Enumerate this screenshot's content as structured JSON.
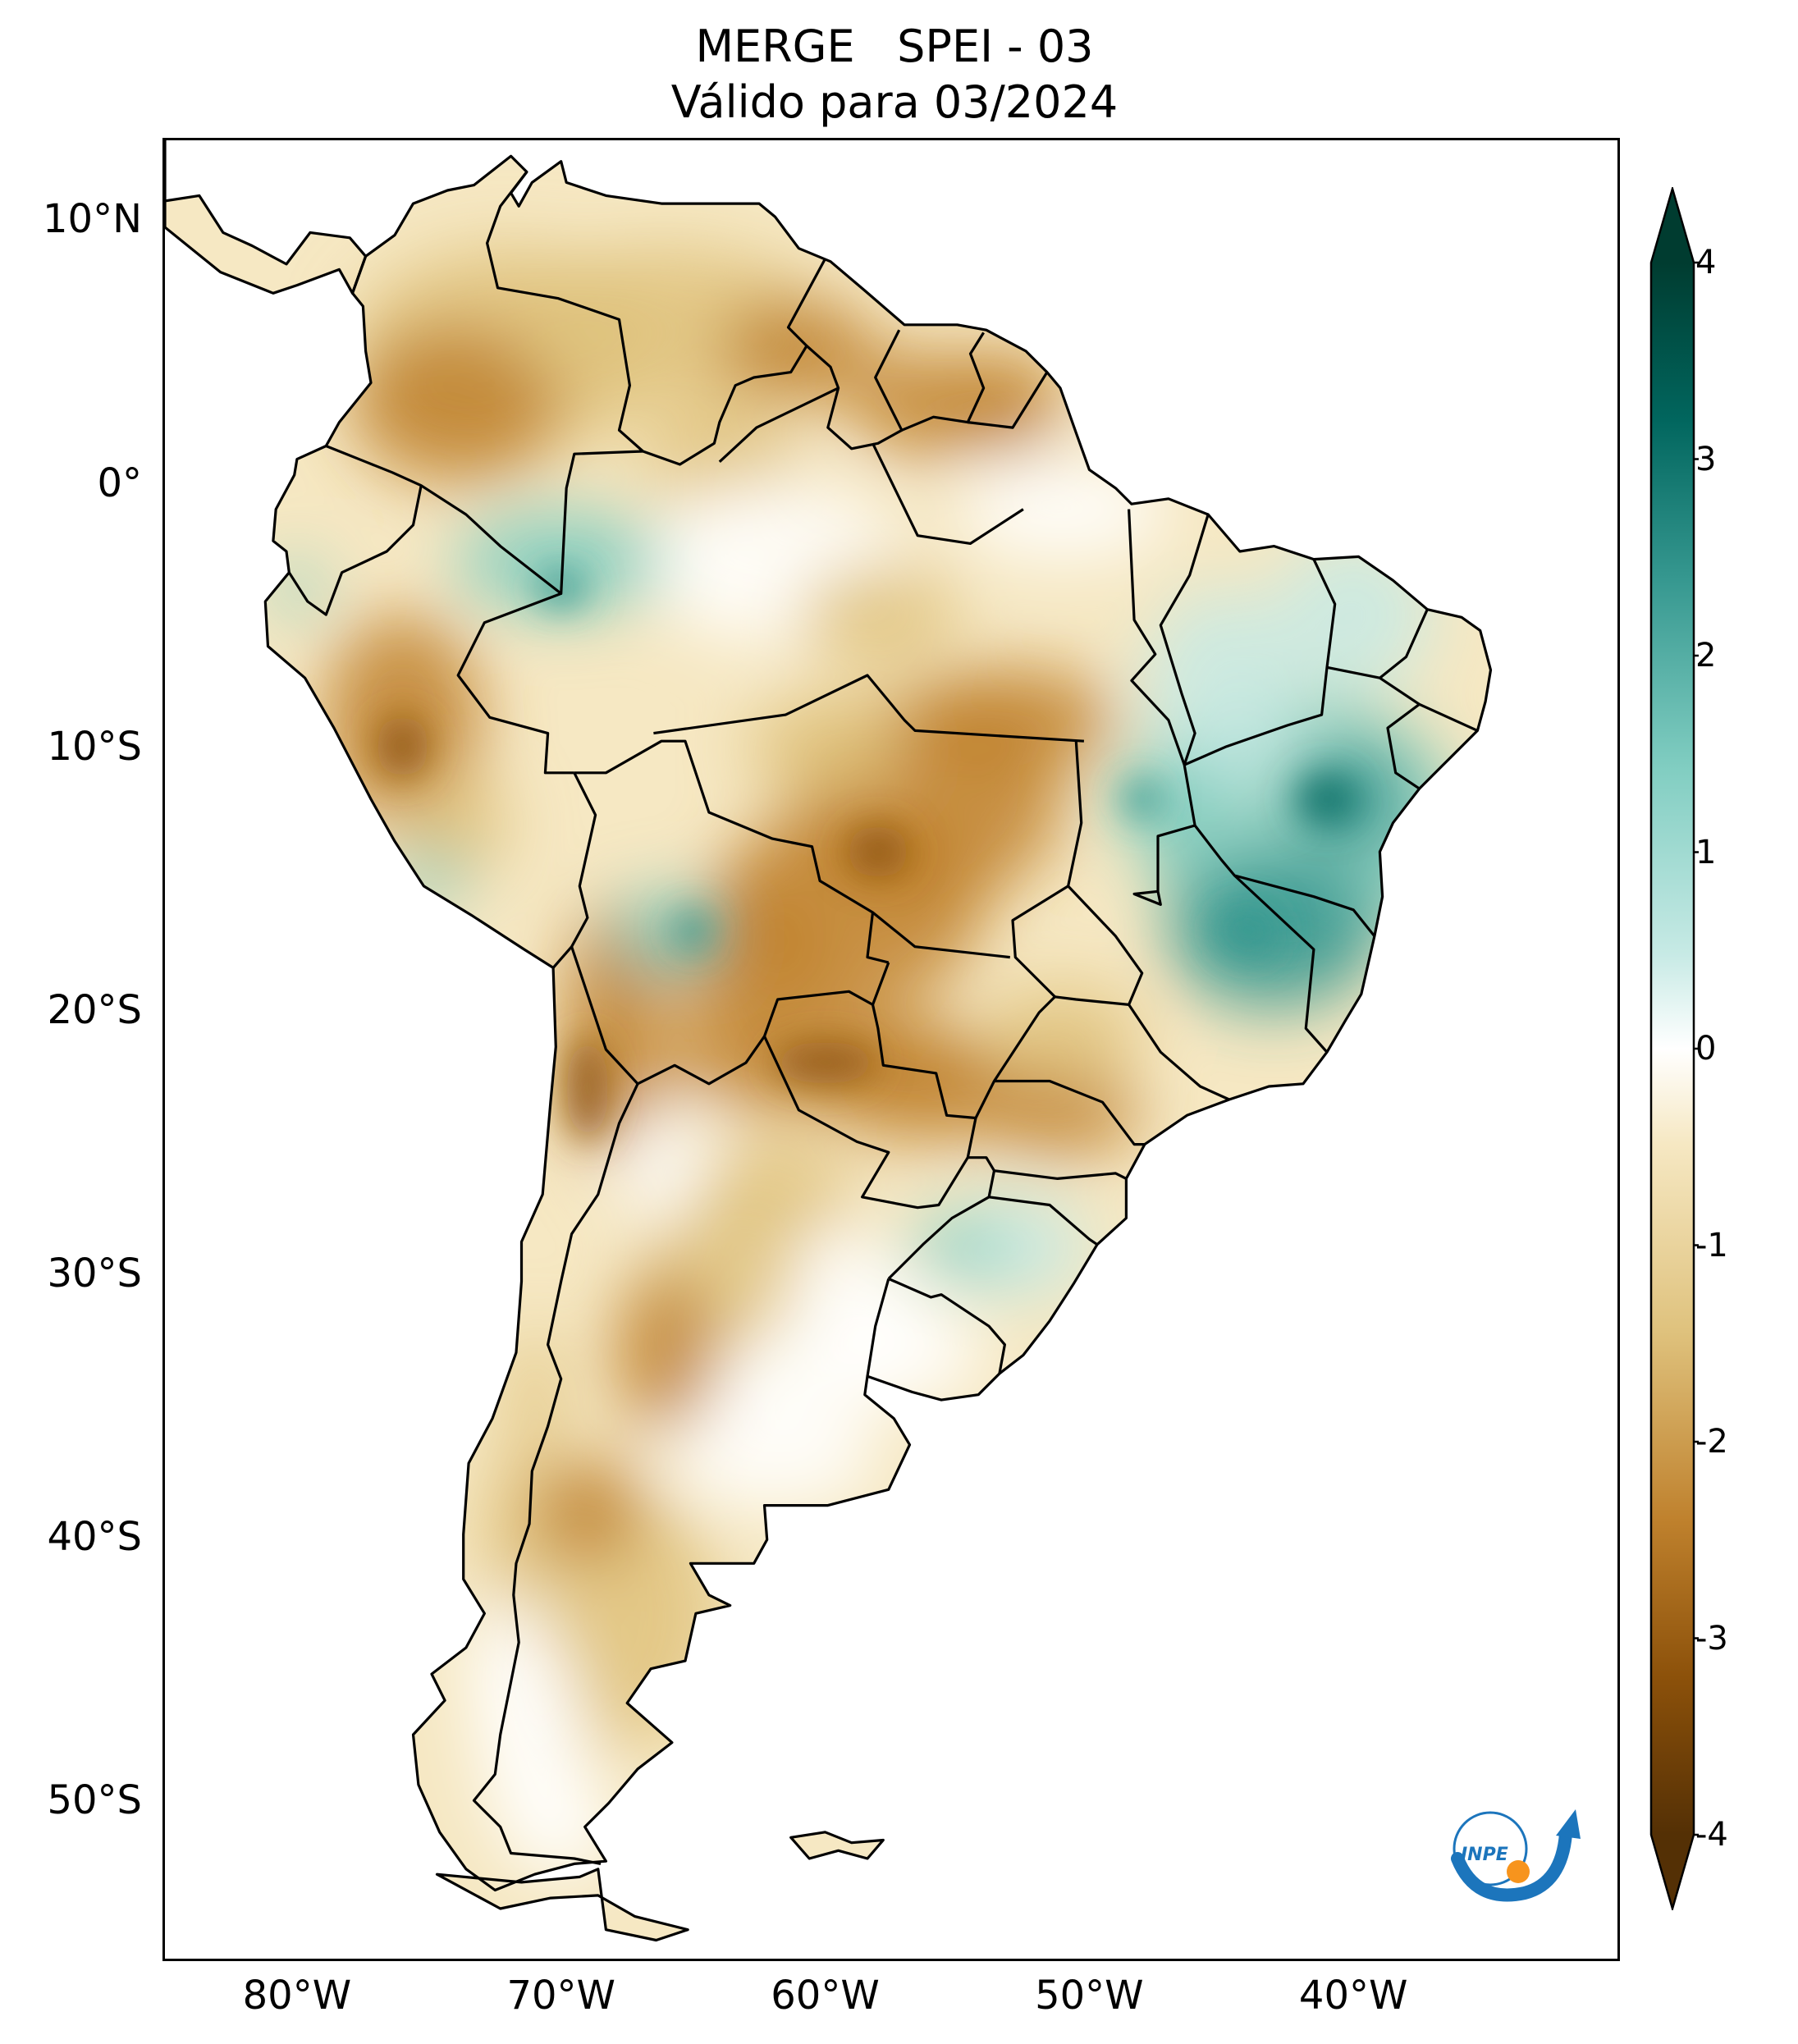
{
  "title": {
    "line1": "MERGE   SPEI - 03",
    "line2": "Válido para 03/2024"
  },
  "map": {
    "extent_lon": [
      -85,
      -30
    ],
    "extent_lat": [
      -56,
      13
    ],
    "lat_ticks": [
      {
        "value": 10,
        "label": "10°N"
      },
      {
        "value": 0,
        "label": "0°"
      },
      {
        "value": -10,
        "label": "10°S"
      },
      {
        "value": -20,
        "label": "20°S"
      },
      {
        "value": -30,
        "label": "30°S"
      },
      {
        "value": -40,
        "label": "40°S"
      },
      {
        "value": -50,
        "label": "50°S"
      }
    ],
    "lon_ticks": [
      {
        "value": -80,
        "label": "80°W"
      },
      {
        "value": -70,
        "label": "70°W"
      },
      {
        "value": -60,
        "label": "60°W"
      },
      {
        "value": -50,
        "label": "50°W"
      },
      {
        "value": -40,
        "label": "40°W"
      }
    ]
  },
  "colorbar": {
    "min": -4,
    "max": 4,
    "extend": "both",
    "ticks": [
      {
        "value": 4,
        "label": "4"
      },
      {
        "value": 3,
        "label": "3"
      },
      {
        "value": 2,
        "label": "2"
      },
      {
        "value": 1,
        "label": "1"
      },
      {
        "value": 0,
        "label": "0"
      },
      {
        "value": -1,
        "label": "-1"
      },
      {
        "value": -2,
        "label": "-2"
      },
      {
        "value": -3,
        "label": "-3"
      },
      {
        "value": -4,
        "label": "-4"
      }
    ],
    "colors": {
      "dry_extreme": "#543005",
      "dry_strong": "#8c510a",
      "dry_moderate": "#bf812d",
      "dry_mild": "#dfc27d",
      "dry_weak": "#f6e8c3",
      "neutral": "#ffffff",
      "wet_weak": "#c7eae5",
      "wet_mild": "#80cdc1",
      "wet_moderate": "#35978f",
      "wet_strong": "#01665e",
      "wet_extreme": "#003c30"
    }
  },
  "logo": {
    "text": "INPE",
    "colors": {
      "arc": "#1c75bc",
      "dot": "#f7941d"
    }
  }
}
